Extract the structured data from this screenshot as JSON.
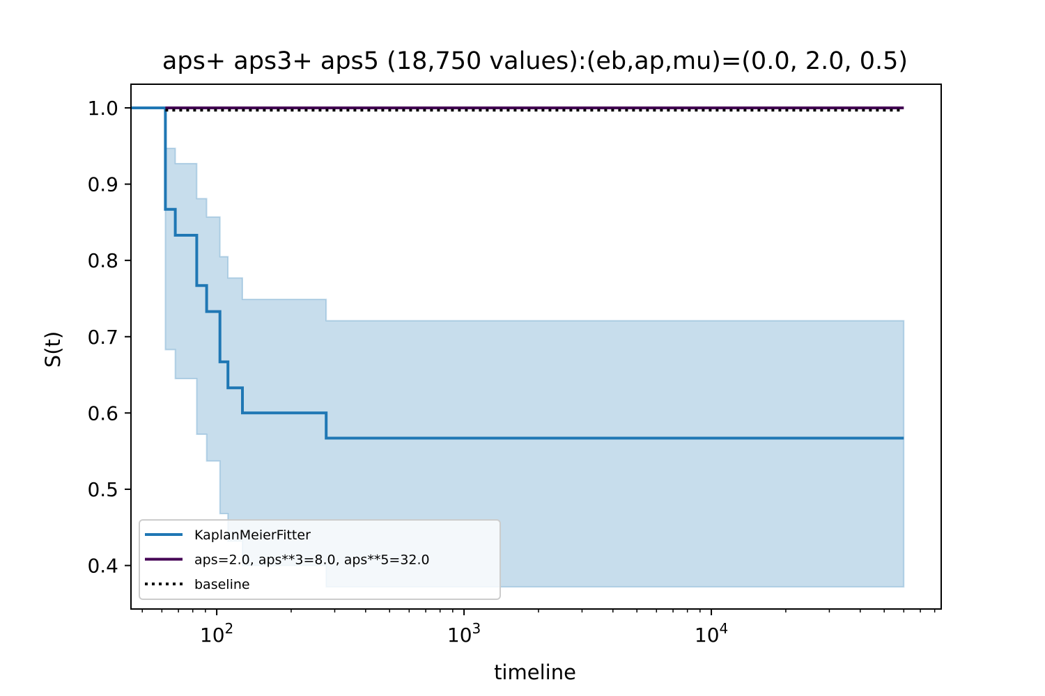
{
  "chart_data": {
    "type": "line",
    "step": true,
    "title": "aps+ aps3+ aps5 (18,750 values):(eb,ap,mu)=(0.0, 2.0, 0.5)",
    "xlabel": "timeline",
    "ylabel": "S(t)",
    "xscale": "log",
    "xlim": [
      45,
      85000
    ],
    "ylim": [
      0.343,
      1.031
    ],
    "xticks": [
      {
        "value": 100,
        "base": "10",
        "exp": "2"
      },
      {
        "value": 1000,
        "base": "10",
        "exp": "3"
      },
      {
        "value": 10000,
        "base": "10",
        "exp": "4"
      }
    ],
    "yticks": [
      "0.4",
      "0.5",
      "0.6",
      "0.7",
      "0.8",
      "0.9",
      "1.0"
    ],
    "grid": false,
    "legend_position": "lower-left",
    "series": [
      {
        "name": "KaplanMeierFitter",
        "color": "#1f77b4",
        "style": "solid",
        "x": [
          45,
          62,
          68,
          83,
          91,
          103,
          111,
          127,
          277,
          60000
        ],
        "y": [
          1.0,
          0.867,
          0.833,
          0.767,
          0.733,
          0.667,
          0.633,
          0.6,
          0.567,
          0.567
        ],
        "ci_lower": [
          1.0,
          0.683,
          0.645,
          0.572,
          0.537,
          0.468,
          0.432,
          0.4,
          0.372,
          0.372
        ],
        "ci_upper": [
          1.0,
          0.947,
          0.927,
          0.881,
          0.857,
          0.805,
          0.777,
          0.749,
          0.721,
          0.721
        ]
      },
      {
        "name": "aps=2.0, aps**3=8.0, aps**5=32.0",
        "color": "#440154",
        "style": "solid",
        "x": [
          62,
          60000
        ],
        "y": [
          1.0,
          1.0
        ]
      },
      {
        "name": "baseline",
        "color": "#000000",
        "style": "dotted",
        "x": [
          62,
          60000
        ],
        "y": [
          0.997,
          0.997
        ]
      }
    ]
  }
}
